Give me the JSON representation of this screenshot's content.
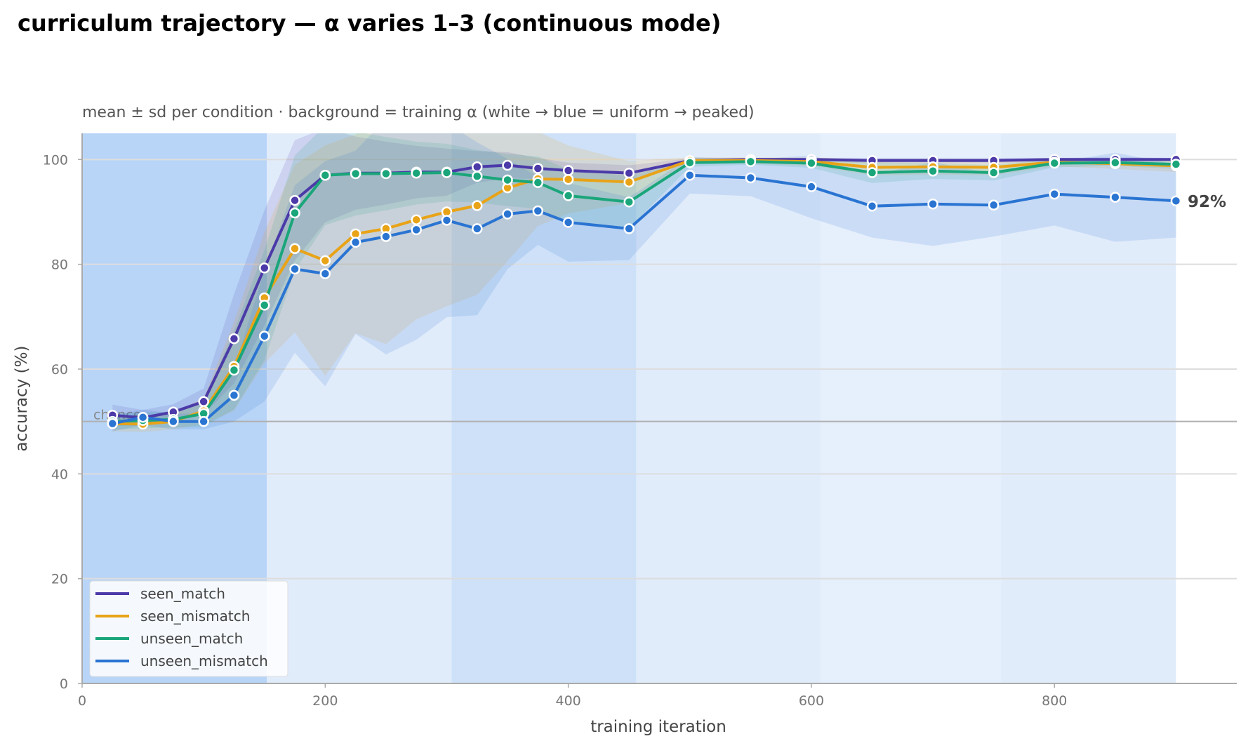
{
  "title": "curriculum trajectory — α varies 1–3 (continuous mode)",
  "chart_data": {
    "type": "line",
    "subtitle": "mean ± sd per condition · background = training α (white → blue = uniform → peaked)",
    "xlabel": "training iteration",
    "ylabel": "accuracy (%)",
    "xlim": [
      0,
      950
    ],
    "ylim": [
      0,
      105
    ],
    "xticks": [
      0,
      200,
      400,
      600,
      800
    ],
    "yticks": [
      0,
      20,
      40,
      60,
      80,
      100
    ],
    "grid": "horizontal",
    "legend_position": "lower-left",
    "x": [
      25,
      50,
      75,
      100,
      125,
      150,
      175,
      200,
      225,
      250,
      275,
      300,
      325,
      350,
      375,
      400,
      450,
      500,
      550,
      600,
      650,
      700,
      750,
      800,
      850,
      900
    ],
    "series": [
      {
        "name": "seen_match",
        "color": "#4b3aa8",
        "values": [
          51.2,
          50.7,
          51.8,
          53.8,
          65.8,
          79.3,
          92.2,
          97.0,
          97.4,
          97.4,
          97.6,
          97.6,
          98.6,
          98.9,
          98.3,
          97.9,
          97.4,
          99.8,
          100.0,
          100.0,
          99.8,
          99.8,
          99.8,
          100.0,
          100.0,
          100.0
        ],
        "sd": [
          2.0,
          1.5,
          1.5,
          2.5,
          8.5,
          11.0,
          11.5,
          9.0,
          7.0,
          6.0,
          5.0,
          4.5,
          3.0,
          2.5,
          2.0,
          1.5,
          1.5,
          0.4,
          0.3,
          0.3,
          0.5,
          0.5,
          0.5,
          0.3,
          0.5,
          0.3
        ]
      },
      {
        "name": "seen_mismatch",
        "color": "#e8a317",
        "values": [
          49.6,
          49.5,
          50.0,
          52.0,
          60.5,
          73.6,
          83.0,
          80.7,
          85.8,
          86.8,
          88.5,
          90.0,
          91.2,
          94.6,
          96.3,
          96.2,
          95.7,
          99.8,
          99.8,
          99.6,
          98.5,
          98.6,
          98.5,
          99.5,
          99.2,
          98.8
        ],
        "sd": [
          1.5,
          1.5,
          1.5,
          2.5,
          8.5,
          12.5,
          16.0,
          22.0,
          19.0,
          22.0,
          19.0,
          18.0,
          17.0,
          14.0,
          9.0,
          6.5,
          4.0,
          0.6,
          0.6,
          0.8,
          1.5,
          1.5,
          1.5,
          0.8,
          1.0,
          1.2
        ]
      },
      {
        "name": "unseen_match",
        "color": "#1aa67a",
        "values": [
          50.0,
          50.2,
          50.4,
          51.5,
          59.8,
          72.2,
          89.8,
          97.0,
          97.3,
          97.3,
          97.4,
          97.5,
          96.8,
          96.1,
          95.6,
          93.1,
          91.9,
          99.4,
          99.6,
          99.3,
          97.5,
          97.8,
          97.5,
          99.3,
          99.4,
          99.1
        ],
        "sd": [
          1.5,
          1.5,
          1.5,
          2.5,
          7.5,
          10.5,
          11.0,
          9.5,
          8.0,
          7.0,
          6.0,
          5.5,
          5.0,
          5.0,
          5.0,
          5.0,
          5.0,
          0.8,
          0.6,
          0.9,
          2.0,
          1.5,
          1.5,
          0.8,
          0.6,
          0.9
        ]
      },
      {
        "name": "unseen_mismatch",
        "color": "#2a74d2",
        "values": [
          49.6,
          50.8,
          50.0,
          50.0,
          55.0,
          66.3,
          79.1,
          78.2,
          84.2,
          85.3,
          86.6,
          88.4,
          86.8,
          89.6,
          90.2,
          88.0,
          86.8,
          97.0,
          96.5,
          94.8,
          91.1,
          91.5,
          91.3,
          93.4,
          92.8,
          92.1
        ],
        "sd": [
          1.5,
          1.5,
          1.5,
          1.5,
          5.0,
          12.5,
          16.0,
          21.5,
          17.5,
          22.5,
          21.0,
          18.5,
          16.5,
          10.5,
          6.5,
          7.5,
          6.0,
          3.5,
          3.5,
          6.0,
          6.0,
          8.0,
          6.0,
          6.0,
          8.5,
          7.0
        ]
      }
    ],
    "background_bands": [
      {
        "x0": 0,
        "x1": 152,
        "level": 1.0
      },
      {
        "x0": 152,
        "x1": 304,
        "level": 0.15
      },
      {
        "x0": 304,
        "x1": 456,
        "level": 0.55
      },
      {
        "x0": 456,
        "x1": 608,
        "level": 0.15
      },
      {
        "x0": 608,
        "x1": 756,
        "level": 0.05
      },
      {
        "x0": 756,
        "x1": 900,
        "level": 0.15
      }
    ],
    "reference_line": {
      "y": 50,
      "label": "chance",
      "color": "#b0b0b0"
    },
    "end_label": "92%"
  }
}
